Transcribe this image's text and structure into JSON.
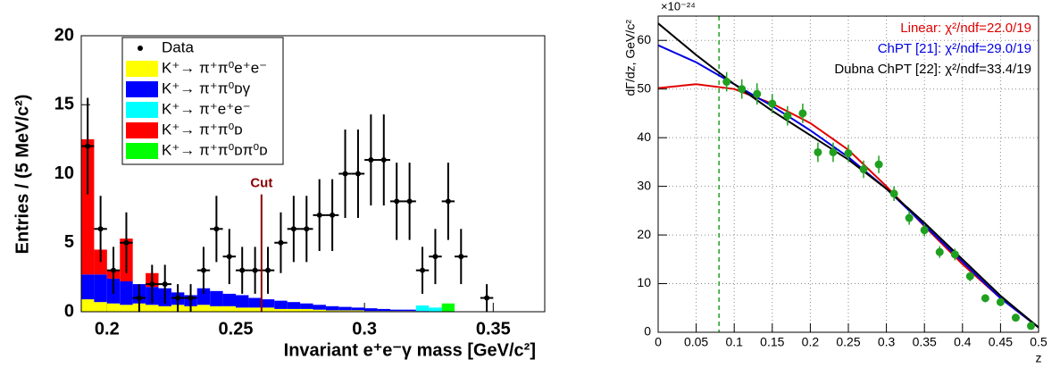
{
  "chart_data": [
    {
      "type": "histogram",
      "y_label": "Entries / (5 MeV/c²)",
      "x_label": "Invariant e⁺e⁻γ mass [GeV/c²]",
      "xlim": [
        0.19,
        0.37
      ],
      "ylim": [
        0,
        20
      ],
      "xticks": [
        0.2,
        0.25,
        0.3,
        0.35
      ],
      "yticks": [
        0,
        5,
        10,
        15,
        20
      ],
      "bins": [
        0.19,
        0.195,
        0.2,
        0.205,
        0.21,
        0.215,
        0.22,
        0.225,
        0.23,
        0.235,
        0.24,
        0.245,
        0.25,
        0.255,
        0.26,
        0.265,
        0.27,
        0.275,
        0.28,
        0.285,
        0.29,
        0.295,
        0.3,
        0.305,
        0.31,
        0.315,
        0.32,
        0.325,
        0.33,
        0.335,
        0.34,
        0.345,
        0.35,
        0.355,
        0.36,
        0.365
      ],
      "series": [
        {
          "name": "K⁺→ π⁺π⁰e⁺e⁻",
          "color": "#ffff00",
          "values": [
            0.9,
            0.7,
            0.6,
            0.5,
            0.6,
            0.5,
            0.4,
            0.5,
            0.4,
            0.5,
            0.4,
            0.4,
            0.3,
            0.3,
            0.3,
            0.2,
            0.2,
            0.2,
            0.15,
            0.1,
            0.1,
            0.1,
            0.05,
            0.05,
            0.05,
            0.05,
            0,
            0,
            0,
            0,
            0,
            0,
            0,
            0,
            0
          ]
        },
        {
          "name": "K⁺→ π⁺π⁰ᴅγ",
          "color": "#0000ff",
          "values": [
            1.8,
            2.0,
            1.8,
            1.7,
            1.4,
            1.3,
            1.3,
            0.9,
            0.8,
            1.2,
            1.1,
            0.9,
            0.9,
            0.7,
            0.6,
            0.6,
            0.5,
            0.4,
            0.35,
            0.3,
            0.25,
            0.2,
            0.2,
            0.15,
            0.1,
            0.1,
            0.05,
            0,
            0,
            0,
            0,
            0,
            0,
            0,
            0
          ]
        },
        {
          "name": "K⁺→ π⁺e⁺e⁻",
          "color": "#00ffff",
          "values": [
            0,
            0,
            0,
            0,
            0,
            0,
            0,
            0,
            0,
            0,
            0,
            0,
            0,
            0,
            0,
            0,
            0,
            0,
            0,
            0,
            0,
            0,
            0,
            0,
            0,
            0,
            0.4,
            0.3,
            0,
            0,
            0,
            0,
            0,
            0,
            0
          ]
        },
        {
          "name": "K⁺→ π⁺π⁰ᴅ",
          "color": "#ff0000",
          "values": [
            9.8,
            1.8,
            0.6,
            3.1,
            0,
            1.0,
            0,
            0,
            0,
            0,
            0,
            0,
            0,
            0,
            0,
            0,
            0,
            0,
            0,
            0,
            0,
            0,
            0,
            0,
            0,
            0,
            0,
            0,
            0,
            0,
            0,
            0,
            0,
            0,
            0
          ]
        },
        {
          "name": "K⁺→ π⁺π⁰ᴅπ⁰ᴅ",
          "color": "#00ff00",
          "values": [
            0,
            0,
            0,
            0,
            0,
            0,
            0,
            0,
            0,
            0,
            0,
            0,
            0,
            0,
            0,
            0,
            0,
            0,
            0,
            0,
            0,
            0,
            0,
            0,
            0,
            0,
            0,
            0,
            0.6,
            0,
            0,
            0,
            0,
            0,
            0
          ]
        }
      ],
      "points": {
        "name": "Data",
        "x": [
          0.1925,
          0.1975,
          0.2025,
          0.2075,
          0.2125,
          0.2175,
          0.2225,
          0.2275,
          0.2325,
          0.2375,
          0.2425,
          0.2475,
          0.2525,
          0.2575,
          0.2625,
          0.2675,
          0.2725,
          0.2775,
          0.2825,
          0.2875,
          0.2925,
          0.2975,
          0.3025,
          0.3075,
          0.3125,
          0.3175,
          0.3225,
          0.3275,
          0.3325,
          0.3375,
          0.3475
        ],
        "values": [
          12,
          6,
          3,
          5,
          1,
          2,
          2,
          1,
          1,
          3,
          6,
          4,
          3,
          3,
          3,
          5,
          6,
          6,
          7,
          7,
          10,
          10,
          11,
          11,
          8,
          8,
          3,
          4,
          8,
          4,
          1
        ],
        "errors": [
          3.5,
          2.4,
          1.7,
          2.2,
          1,
          1.4,
          1.4,
          1,
          1,
          1.7,
          2.4,
          2,
          1.7,
          1.7,
          1.7,
          2.2,
          2.4,
          2.4,
          2.6,
          2.6,
          3.2,
          3.2,
          3.3,
          3.3,
          2.8,
          2.8,
          1.7,
          2,
          2.8,
          2,
          1
        ]
      },
      "cut": {
        "label": "Cut",
        "x": 0.26,
        "y": 8.5,
        "color": "#8b0000"
      }
    },
    {
      "type": "scatter",
      "multiplier": "×10⁻²⁴",
      "y_label": "dΓ/dz, GeV/c²",
      "x_label": "z",
      "xlim": [
        0,
        0.5
      ],
      "ylim": [
        0,
        65
      ],
      "xticks": [
        0,
        0.05,
        0.1,
        0.15,
        0.2,
        0.25,
        0.3,
        0.35,
        0.4,
        0.45,
        0.5
      ],
      "yticks": [
        0,
        10,
        20,
        30,
        40,
        50,
        60
      ],
      "grid": true,
      "cut_x": 0.08,
      "points": {
        "color": "#20a020",
        "x": [
          0.09,
          0.11,
          0.13,
          0.15,
          0.17,
          0.19,
          0.21,
          0.23,
          0.25,
          0.27,
          0.29,
          0.31,
          0.33,
          0.35,
          0.37,
          0.39,
          0.41,
          0.43,
          0.45,
          0.47,
          0.49
        ],
        "values": [
          51.5,
          50,
          49,
          47,
          44.5,
          45,
          37,
          37,
          36.8,
          33.5,
          34.5,
          28.5,
          23.5,
          21,
          16.5,
          16,
          11.5,
          7,
          6.2,
          3,
          1.3
        ],
        "errors": [
          2,
          2,
          2.2,
          2,
          2,
          2,
          2,
          2,
          1.8,
          1.8,
          1.8,
          1.5,
          1.4,
          1.3,
          1.2,
          1.2,
          1,
          0.8,
          0.7,
          0.6,
          0.4
        ]
      },
      "curve_x": [
        0,
        0.05,
        0.1,
        0.15,
        0.2,
        0.25,
        0.3,
        0.35,
        0.4,
        0.45,
        0.5
      ],
      "series": [
        {
          "name": "Linear: χ²/ndf=22.0/19",
          "color": "#e00000",
          "values": [
            50.2,
            51,
            50,
            47,
            43,
            37.5,
            30,
            21.8,
            14,
            7,
            1
          ]
        },
        {
          "name": "ChPT [21]: χ²/ndf=29.0/19",
          "color": "#0000e0",
          "values": [
            59,
            55.5,
            51,
            46.5,
            41.5,
            36,
            29.5,
            22,
            14.5,
            7,
            1
          ]
        },
        {
          "name": "Dubna ChPT [22]: χ²/ndf=33.4/19",
          "color": "#000000",
          "values": [
            63.5,
            57,
            51,
            45.5,
            40.5,
            35.5,
            29.5,
            22.5,
            15,
            7.5,
            1
          ]
        }
      ]
    }
  ]
}
